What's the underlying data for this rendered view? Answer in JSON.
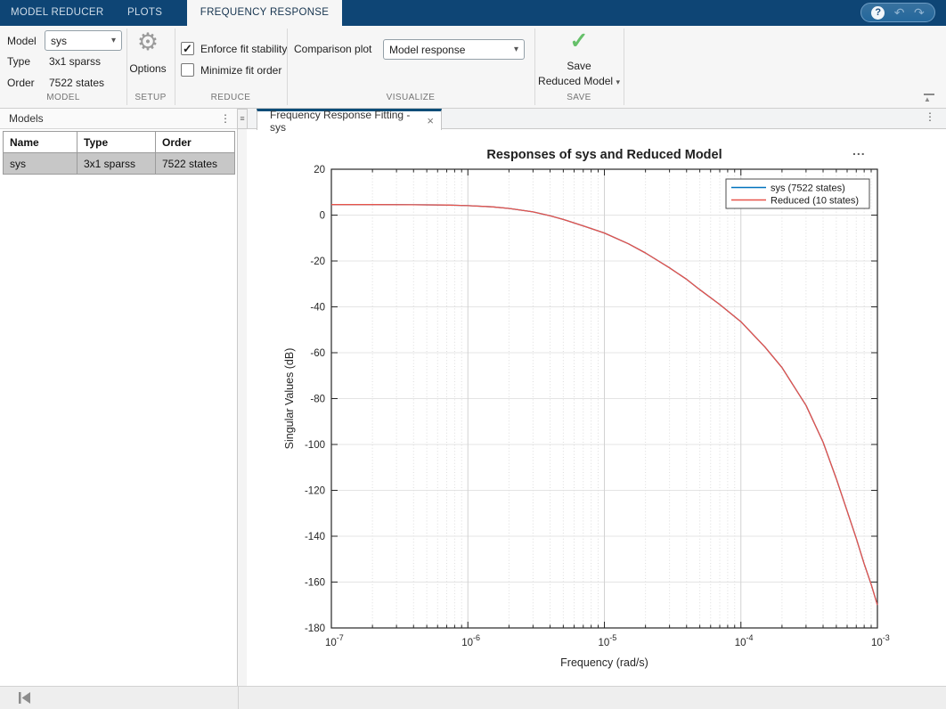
{
  "topbar": {
    "tabs": [
      {
        "label": "MODEL REDUCER"
      },
      {
        "label": "PLOTS"
      },
      {
        "label": "FREQUENCY RESPONSE FITTING"
      }
    ]
  },
  "icons": {
    "help": "?",
    "undo": "↶",
    "redo": "↷",
    "gear": "⚙",
    "check": "✓",
    "chevron_down": "▾",
    "dots_vertical": "⋮",
    "dots_horizontal": "...",
    "menu": "≡",
    "close": "×",
    "minimize_triangle": "▲"
  },
  "colors": {
    "topbar_blue": "#0e4575",
    "active_tab_accent": "#0b4d78",
    "save_check_green": "#66c06a",
    "series_blue": "#0072bd",
    "series_red": "#e8534a",
    "selected_row_gray": "#c7c7c7"
  },
  "ribbon": {
    "model_section": {
      "label": "MODEL",
      "model_label": "Model",
      "model_value": "sys",
      "type_label": "Type",
      "type_value": "3x1 sparss",
      "order_label": "Order",
      "order_value": "7522 states"
    },
    "setup_section": {
      "label": "SETUP",
      "options_label": "Options"
    },
    "reduce_section": {
      "label": "REDUCE",
      "checkbox1_label": "Enforce fit stability",
      "checkbox1_checked": true,
      "checkbox2_label": "Minimize fit order",
      "checkbox2_checked": false
    },
    "visualize_section": {
      "label": "VISUALIZE",
      "comparison_label": "Comparison plot",
      "comparison_value": "Model response"
    },
    "save_section": {
      "label": "SAVE",
      "save_line1": "Save",
      "save_line2": "Reduced Model"
    }
  },
  "models_panel": {
    "title": "Models",
    "table": {
      "headers": [
        "Name",
        "Type",
        "Order"
      ],
      "rows": [
        [
          "sys",
          "3x1 sparss",
          "7522 states"
        ]
      ]
    }
  },
  "document": {
    "tab_title": "Frequency Response Fitting - sys"
  },
  "chart_data": {
    "type": "line",
    "title": "Responses of sys and Reduced Model",
    "xlabel": "Frequency (rad/s)",
    "ylabel": "Singular Values (dB)",
    "x_scale": "log",
    "xlim": [
      1e-07,
      0.001
    ],
    "ylim": [
      -180,
      20
    ],
    "y_ticks": [
      20,
      0,
      -20,
      -40,
      -60,
      -80,
      -100,
      -120,
      -140,
      -160,
      -180
    ],
    "x_tick_exponents": [
      -7,
      -6,
      -5,
      -4,
      -3
    ],
    "grid": true,
    "minor_grid": true,
    "legend_position": "northeast",
    "series": [
      {
        "name": "sys (7522 states)",
        "color": "#0072bd",
        "points": [
          [
            1e-07,
            4.6
          ],
          [
            2e-07,
            4.6
          ],
          [
            4e-07,
            4.5
          ],
          [
            7e-07,
            4.4
          ],
          [
            1e-06,
            4.1
          ],
          [
            1.5e-06,
            3.6
          ],
          [
            2e-06,
            2.9
          ],
          [
            3e-06,
            1.4
          ],
          [
            4e-06,
            -0.3
          ],
          [
            5e-06,
            -1.9
          ],
          [
            7e-06,
            -4.7
          ],
          [
            1e-05,
            -7.8
          ],
          [
            1.5e-05,
            -12.5
          ],
          [
            2e-05,
            -16.5
          ],
          [
            3e-05,
            -23
          ],
          [
            4e-05,
            -28
          ],
          [
            5e-05,
            -32.5
          ],
          [
            7e-05,
            -39
          ],
          [
            0.0001,
            -46.5
          ],
          [
            0.00015,
            -57.5
          ],
          [
            0.0002,
            -66.5
          ],
          [
            0.0003,
            -83
          ],
          [
            0.0004,
            -99
          ],
          [
            0.0005,
            -115
          ],
          [
            0.0006,
            -129
          ],
          [
            0.0007,
            -141
          ],
          [
            0.0008,
            -152
          ],
          [
            0.0009,
            -161
          ],
          [
            0.001,
            -170
          ]
        ]
      },
      {
        "name": "Reduced (10 states)",
        "color": "#e8534a",
        "points": [
          [
            1e-07,
            4.6
          ],
          [
            2e-07,
            4.6
          ],
          [
            4e-07,
            4.5
          ],
          [
            7e-07,
            4.4
          ],
          [
            1e-06,
            4.1
          ],
          [
            1.5e-06,
            3.6
          ],
          [
            2e-06,
            2.9
          ],
          [
            3e-06,
            1.4
          ],
          [
            4e-06,
            -0.3
          ],
          [
            5e-06,
            -1.9
          ],
          [
            7e-06,
            -4.7
          ],
          [
            1e-05,
            -7.8
          ],
          [
            1.5e-05,
            -12.5
          ],
          [
            2e-05,
            -16.5
          ],
          [
            3e-05,
            -23
          ],
          [
            4e-05,
            -28
          ],
          [
            5e-05,
            -32.5
          ],
          [
            7e-05,
            -39
          ],
          [
            0.0001,
            -46.5
          ],
          [
            0.00015,
            -57.5
          ],
          [
            0.0002,
            -66.5
          ],
          [
            0.0003,
            -83
          ],
          [
            0.0004,
            -99
          ],
          [
            0.0005,
            -115
          ],
          [
            0.0006,
            -129
          ],
          [
            0.0007,
            -141
          ],
          [
            0.0008,
            -152
          ],
          [
            0.0009,
            -161
          ],
          [
            0.001,
            -170
          ]
        ]
      }
    ]
  }
}
